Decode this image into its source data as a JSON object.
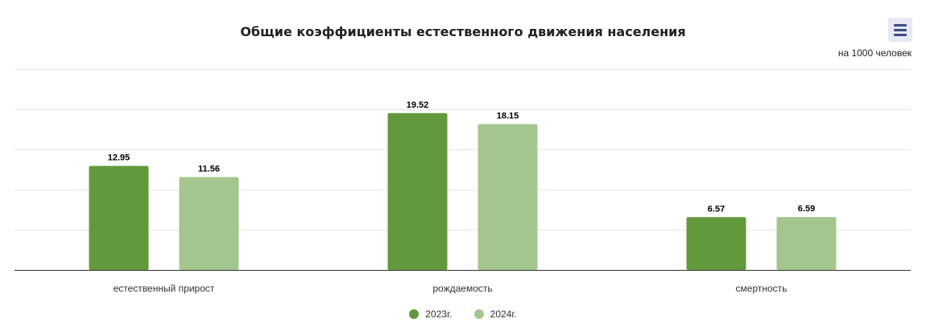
{
  "header": {
    "title": "Общие коэффициенты естественного движения населения",
    "units": "на 1000 человек",
    "menu_icon": "hamburger-menu-icon"
  },
  "colors": {
    "series_2023": "#63993d",
    "series_2024": "#a3c68e",
    "grid": "#e6e6e6",
    "axis": "#333333",
    "menu_bg": "#e6e9f3",
    "menu_icon": "#3a4a8a"
  },
  "legend": {
    "items": [
      {
        "label": "2023г.",
        "color": "#63993d"
      },
      {
        "label": "2024г.",
        "color": "#a3c68e"
      }
    ]
  },
  "chart_data": {
    "type": "bar",
    "title": "Общие коэффициенты естественного движения населения",
    "subtitle": "на 1000 человек",
    "xlabel": "",
    "ylabel": "",
    "categories": [
      "естественный прирост",
      "рождаемость",
      "смертность"
    ],
    "series": [
      {
        "name": "2023г.",
        "values": [
          12.95,
          19.52,
          6.57
        ]
      },
      {
        "name": "2024г.",
        "values": [
          11.56,
          18.15,
          6.59
        ]
      }
    ],
    "ylim": [
      0,
      25
    ],
    "gridlines": [
      0,
      5,
      10,
      15,
      20,
      25
    ],
    "grid": true,
    "y_tick_labels_shown": false,
    "data_labels_shown": true,
    "legend_position": "bottom-center"
  }
}
